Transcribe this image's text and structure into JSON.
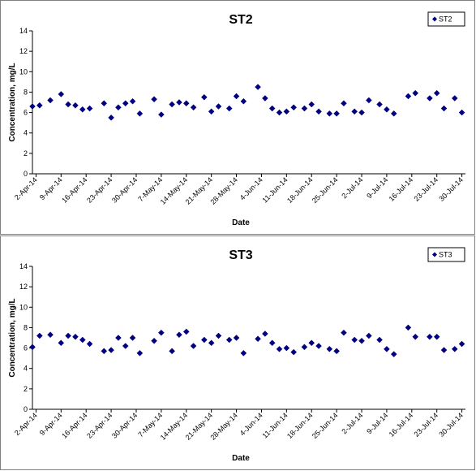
{
  "chart_data": [
    {
      "type": "scatter",
      "title": "ST2",
      "xlabel": "Date",
      "ylabel": "Concentration, mg/L",
      "ylim": [
        0,
        14
      ],
      "yticks": [
        "0",
        "2",
        "4",
        "6",
        "8",
        "10",
        "12",
        "14"
      ],
      "xlim": [
        "2014-04-01",
        "2014-07-31"
      ],
      "xticks": [
        "2-Apr-14",
        "9-Apr-14",
        "16-Apr-14",
        "23-Apr-14",
        "30-Apr-14",
        "7-May-14",
        "14-May-14",
        "21-May-14",
        "28-May-14",
        "4-Jun-14",
        "11-Jun-14",
        "18-Jun-14",
        "25-Jun-14",
        "2-Jul-14",
        "9-Jul-14",
        "16-Jul-14",
        "23-Jul-14",
        "30-Jul-14"
      ],
      "legend_position": "top-right",
      "grid": false,
      "marker_color": "#000080",
      "series": [
        {
          "name": "ST2",
          "x": [
            "2014-04-01",
            "2014-04-03",
            "2014-04-06",
            "2014-04-09",
            "2014-04-11",
            "2014-04-13",
            "2014-04-15",
            "2014-04-17",
            "2014-04-21",
            "2014-04-23",
            "2014-04-25",
            "2014-04-27",
            "2014-04-29",
            "2014-05-01",
            "2014-05-05",
            "2014-05-07",
            "2014-05-10",
            "2014-05-12",
            "2014-05-14",
            "2014-05-16",
            "2014-05-19",
            "2014-05-21",
            "2014-05-23",
            "2014-05-26",
            "2014-05-28",
            "2014-05-30",
            "2014-06-03",
            "2014-06-05",
            "2014-06-07",
            "2014-06-09",
            "2014-06-11",
            "2014-06-13",
            "2014-06-16",
            "2014-06-18",
            "2014-06-20",
            "2014-06-23",
            "2014-06-25",
            "2014-06-27",
            "2014-06-30",
            "2014-07-02",
            "2014-07-04",
            "2014-07-07",
            "2014-07-09",
            "2014-07-11",
            "2014-07-15",
            "2014-07-17",
            "2014-07-21",
            "2014-07-23",
            "2014-07-25",
            "2014-07-28",
            "2014-07-30"
          ],
          "y": [
            6.6,
            6.7,
            7.2,
            7.8,
            6.8,
            6.7,
            6.3,
            6.4,
            6.9,
            5.5,
            6.5,
            6.9,
            7.1,
            5.9,
            7.3,
            5.8,
            6.8,
            7.0,
            6.9,
            6.5,
            7.5,
            6.1,
            6.6,
            6.4,
            7.6,
            7.1,
            8.5,
            7.4,
            6.4,
            6.0,
            6.1,
            6.5,
            6.4,
            6.8,
            6.1,
            5.9,
            5.9,
            6.9,
            6.1,
            6.0,
            7.2,
            6.8,
            6.3,
            5.9,
            7.6,
            7.9,
            7.4,
            7.9,
            6.4,
            7.4,
            6.0
          ]
        }
      ]
    },
    {
      "type": "scatter",
      "title": "ST3",
      "xlabel": "Date",
      "ylabel": "Concentration, mg/L",
      "ylim": [
        0,
        14
      ],
      "yticks": [
        "0",
        "2",
        "4",
        "6",
        "8",
        "10",
        "12",
        "14"
      ],
      "xlim": [
        "2014-04-01",
        "2014-07-31"
      ],
      "xticks": [
        "2-Apr-14",
        "9-Apr-14",
        "16-Apr-14",
        "23-Apr-14",
        "30-Apr-14",
        "7-May-14",
        "14-May-14",
        "21-May-14",
        "28-May-14",
        "4-Jun-14",
        "11-Jun-14",
        "18-Jun-14",
        "25-Jun-14",
        "2-Jul-14",
        "9-Jul-14",
        "16-Jul-14",
        "23-Jul-14",
        "30-Jul-14"
      ],
      "legend_position": "top-right",
      "grid": false,
      "marker_color": "#000080",
      "series": [
        {
          "name": "ST3",
          "x": [
            "2014-04-01",
            "2014-04-03",
            "2014-04-06",
            "2014-04-09",
            "2014-04-11",
            "2014-04-13",
            "2014-04-15",
            "2014-04-17",
            "2014-04-21",
            "2014-04-23",
            "2014-04-25",
            "2014-04-27",
            "2014-04-29",
            "2014-05-01",
            "2014-05-05",
            "2014-05-07",
            "2014-05-10",
            "2014-05-12",
            "2014-05-14",
            "2014-05-16",
            "2014-05-19",
            "2014-05-21",
            "2014-05-23",
            "2014-05-26",
            "2014-05-28",
            "2014-05-30",
            "2014-06-03",
            "2014-06-05",
            "2014-06-07",
            "2014-06-09",
            "2014-06-11",
            "2014-06-13",
            "2014-06-16",
            "2014-06-18",
            "2014-06-20",
            "2014-06-23",
            "2014-06-25",
            "2014-06-27",
            "2014-06-30",
            "2014-07-02",
            "2014-07-04",
            "2014-07-07",
            "2014-07-09",
            "2014-07-11",
            "2014-07-15",
            "2014-07-17",
            "2014-07-21",
            "2014-07-23",
            "2014-07-25",
            "2014-07-28",
            "2014-07-30"
          ],
          "y": [
            6.1,
            7.2,
            7.3,
            6.5,
            7.2,
            7.1,
            6.8,
            6.4,
            5.7,
            5.8,
            7.0,
            6.2,
            7.0,
            5.5,
            6.7,
            7.5,
            5.7,
            7.3,
            7.6,
            6.2,
            6.8,
            6.5,
            7.2,
            6.8,
            7.0,
            5.5,
            6.9,
            7.4,
            6.5,
            5.9,
            6.0,
            5.6,
            6.1,
            6.5,
            6.2,
            5.9,
            5.7,
            7.5,
            6.8,
            6.7,
            7.2,
            6.8,
            5.9,
            5.4,
            8.0,
            7.1,
            7.1,
            7.1,
            5.8,
            5.9,
            6.4
          ]
        }
      ]
    }
  ]
}
